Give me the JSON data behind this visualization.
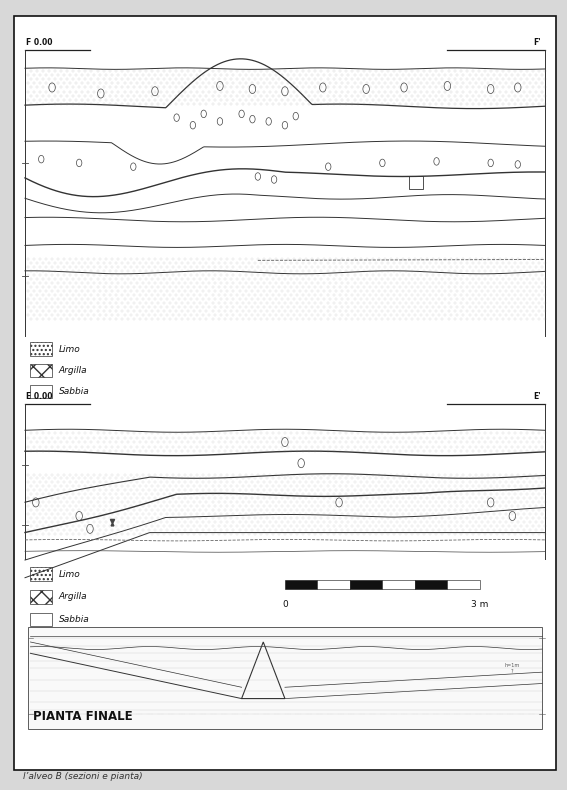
{
  "caption": "l’alveo B (sezioni e pianta)",
  "bg_color": "#d8d8d8",
  "frame_bg": "#ffffff",
  "top_label_left": "F 0.00",
  "top_label_right": "F'",
  "bot_label_left": "E 0.00",
  "bot_label_right": "E'",
  "legend_items": [
    "Limo",
    "Argilla",
    "Sabbia"
  ],
  "pianta_label": "PIANTA FINALE",
  "scale_label": "3 m"
}
